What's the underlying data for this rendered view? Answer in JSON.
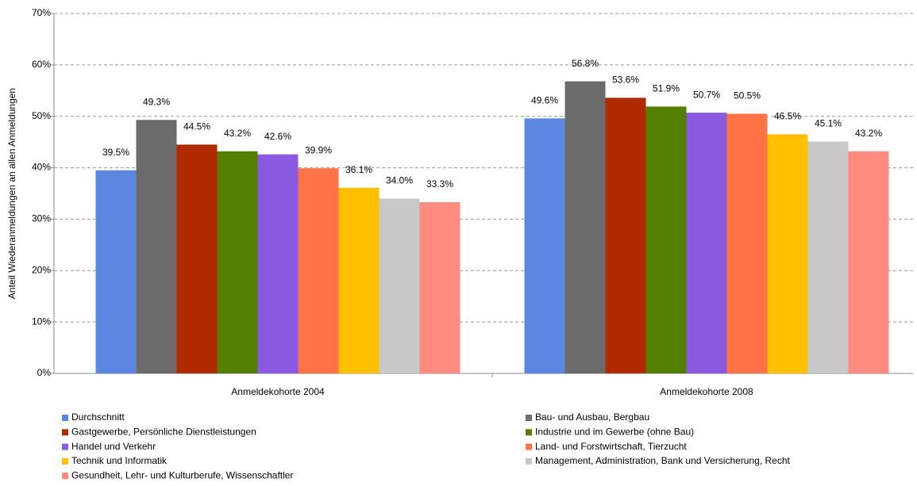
{
  "chart_data": {
    "type": "bar",
    "ylabel": "Anteil Wiederanmeldungen an allen Anmeldungen",
    "categories": [
      "Anmeldekohorte 2004",
      "Anmeldekohorte 2008"
    ],
    "ylim": [
      0,
      70
    ],
    "yticks": [
      {
        "value": 0,
        "label": "0%"
      },
      {
        "value": 10,
        "label": "10%"
      },
      {
        "value": 20,
        "label": "20%"
      },
      {
        "value": 30,
        "label": "30%"
      },
      {
        "value": 40,
        "label": "40%"
      },
      {
        "value": 50,
        "label": "50%"
      },
      {
        "value": 60,
        "label": "60%"
      },
      {
        "value": 70,
        "label": "70%"
      }
    ],
    "grid": true,
    "legend": "bottom",
    "series": [
      {
        "name": "Durchschnitt",
        "color": "#5b87e0",
        "values": [
          39.5,
          49.6
        ],
        "value_labels": [
          "39.5%",
          "49.6%"
        ]
      },
      {
        "name": "Bau- und Ausbau, Bergbau",
        "color": "#6b6b6b",
        "values": [
          49.3,
          56.8
        ],
        "value_labels": [
          "49.3%",
          "56.8%"
        ]
      },
      {
        "name": "Gastgewerbe, Persönliche Dienstleistungen",
        "color": "#b02a00",
        "values": [
          44.5,
          53.6
        ],
        "value_labels": [
          "44.5%",
          "53.6%"
        ]
      },
      {
        "name": "Industrie und im Gewerbe (ohne Bau)",
        "color": "#538000",
        "values": [
          43.2,
          51.9
        ],
        "value_labels": [
          "43.2%",
          "51.9%"
        ]
      },
      {
        "name": "Handel und Verkehr",
        "color": "#8a5ae0",
        "values": [
          42.6,
          50.7
        ],
        "value_labels": [
          "42.6%",
          "50.7%"
        ]
      },
      {
        "name": "Land- und Forstwirtschaft, Tierzucht",
        "color": "#ff7347",
        "values": [
          39.9,
          50.5
        ],
        "value_labels": [
          "39.9%",
          "50.5%"
        ]
      },
      {
        "name": "Technik und Informatik",
        "color": "#ffc000",
        "values": [
          36.1,
          46.5
        ],
        "value_labels": [
          "36.1%",
          "46.5%"
        ]
      },
      {
        "name": "Management, Administration, Bank und Versicherung, Recht",
        "color": "#c8c8c8",
        "values": [
          34.0,
          45.1
        ],
        "value_labels": [
          "34.0%",
          "45.1%"
        ]
      },
      {
        "name": "Gesundheit, Lehr- und Kulturberufe, Wissenschaftler",
        "color": "#ff8a80",
        "values": [
          33.3,
          43.2
        ],
        "value_labels": [
          "33.3%",
          "43.2%"
        ]
      }
    ]
  }
}
